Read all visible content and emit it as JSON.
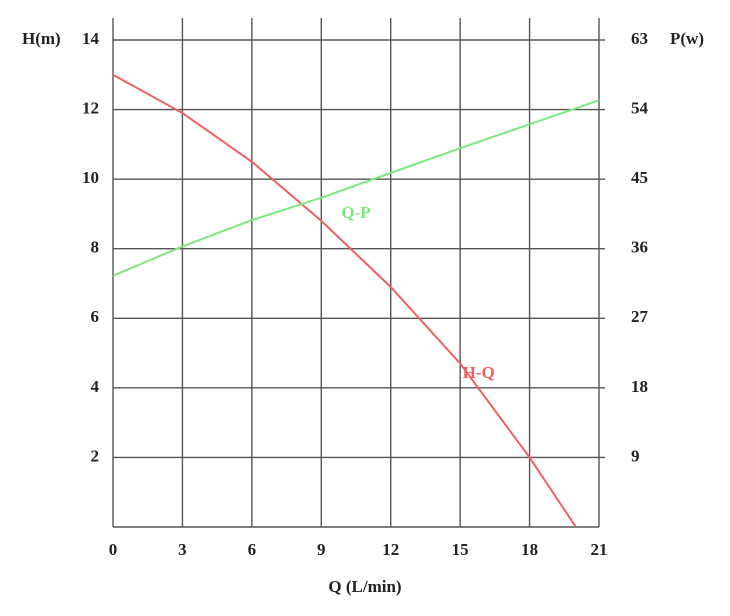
{
  "chart_data": {
    "type": "line",
    "xlabel": "Q (L/min)",
    "ylabel": "H(m)",
    "y2label": "P(w)",
    "xlim": [
      0,
      21
    ],
    "xticks": [
      0,
      3,
      6,
      9,
      12,
      15,
      18,
      21
    ],
    "ylim": [
      0,
      14
    ],
    "yticks": [
      2,
      4,
      6,
      8,
      10,
      12,
      14
    ],
    "y2lim": [
      0,
      63
    ],
    "y2ticks": [
      9,
      18,
      27,
      36,
      45,
      54,
      63
    ],
    "grid": true,
    "series": [
      {
        "name": "H-Q",
        "color": "#f06060",
        "x": [
          0,
          3,
          6,
          9,
          12,
          15,
          18,
          20
        ],
        "values": [
          13,
          11.9,
          10.5,
          8.8,
          6.9,
          4.7,
          2.0,
          0
        ]
      },
      {
        "name": "Q-P",
        "color": "#7ee87e",
        "axis": "y2",
        "x": [
          0,
          3,
          6,
          9,
          12,
          15,
          18,
          21
        ],
        "values": [
          32.5,
          36.3,
          39.7,
          42.6,
          45.8,
          49.0,
          52.1,
          55.2
        ]
      }
    ]
  }
}
